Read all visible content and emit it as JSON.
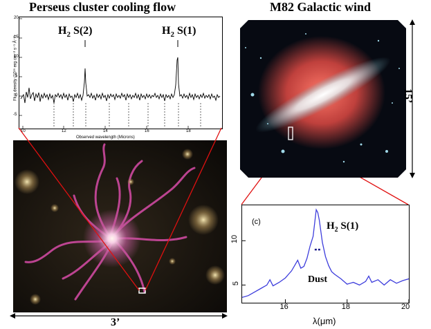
{
  "titles": {
    "left": "Perseus cluster cooling flow",
    "right": "M82 Galactic wind"
  },
  "spectrum_top": {
    "line_labels": [
      "H",
      "2",
      " S(2)",
      "H",
      "2",
      " S(1)"
    ],
    "ylabel": "Flux density (10¹⁶ erg cm⁻² s⁻¹ Å⁻¹)",
    "xlabel": "Observed wavelength (Microns)",
    "yticks": [
      "20",
      "15",
      "10",
      "5",
      "0",
      "-5"
    ],
    "xticks": [
      "10",
      "12",
      "14",
      "16",
      "18"
    ]
  },
  "scale_labels": {
    "bottom": "3’",
    "right": "15’"
  },
  "chart_data": {
    "type": "line",
    "panel_label": "(c)",
    "xlabel": "λ(μm)",
    "ylabel": "",
    "xlim": [
      14.6,
      20
    ],
    "ylim": [
      3,
      14
    ],
    "x_ticks": [
      16,
      18,
      20
    ],
    "y_ticks": [
      5,
      10
    ],
    "annotations": {
      "line": "H",
      "line_sub": "2",
      "line_rest": " S(1)",
      "dust": "Dust"
    },
    "color": "#3c3cdc",
    "series": [
      {
        "x": [
          14.6,
          14.8,
          15.0,
          15.2,
          15.4,
          15.5,
          15.6,
          15.8,
          16.0,
          16.1,
          16.2,
          16.3,
          16.4,
          16.5,
          16.6,
          16.7,
          16.8,
          16.9,
          17.0,
          17.05,
          17.1,
          17.2,
          17.3,
          17.4,
          17.5,
          17.6,
          17.8,
          18.0,
          18.2,
          18.4,
          18.6,
          18.7,
          18.8,
          19.0,
          19.2,
          19.4,
          19.6,
          19.8,
          20.0
        ],
        "y": [
          3.6,
          3.8,
          4.2,
          4.6,
          5.0,
          5.6,
          4.9,
          5.3,
          5.8,
          6.2,
          6.6,
          7.2,
          7.8,
          6.9,
          7.1,
          8.0,
          9.4,
          10.5,
          13.5,
          13.2,
          12.3,
          9.8,
          8.2,
          7.2,
          6.5,
          6.2,
          5.7,
          5.1,
          5.3,
          5.0,
          5.4,
          6.0,
          5.3,
          5.6,
          5.0,
          5.6,
          5.2,
          5.5,
          5.7
        ]
      }
    ]
  }
}
